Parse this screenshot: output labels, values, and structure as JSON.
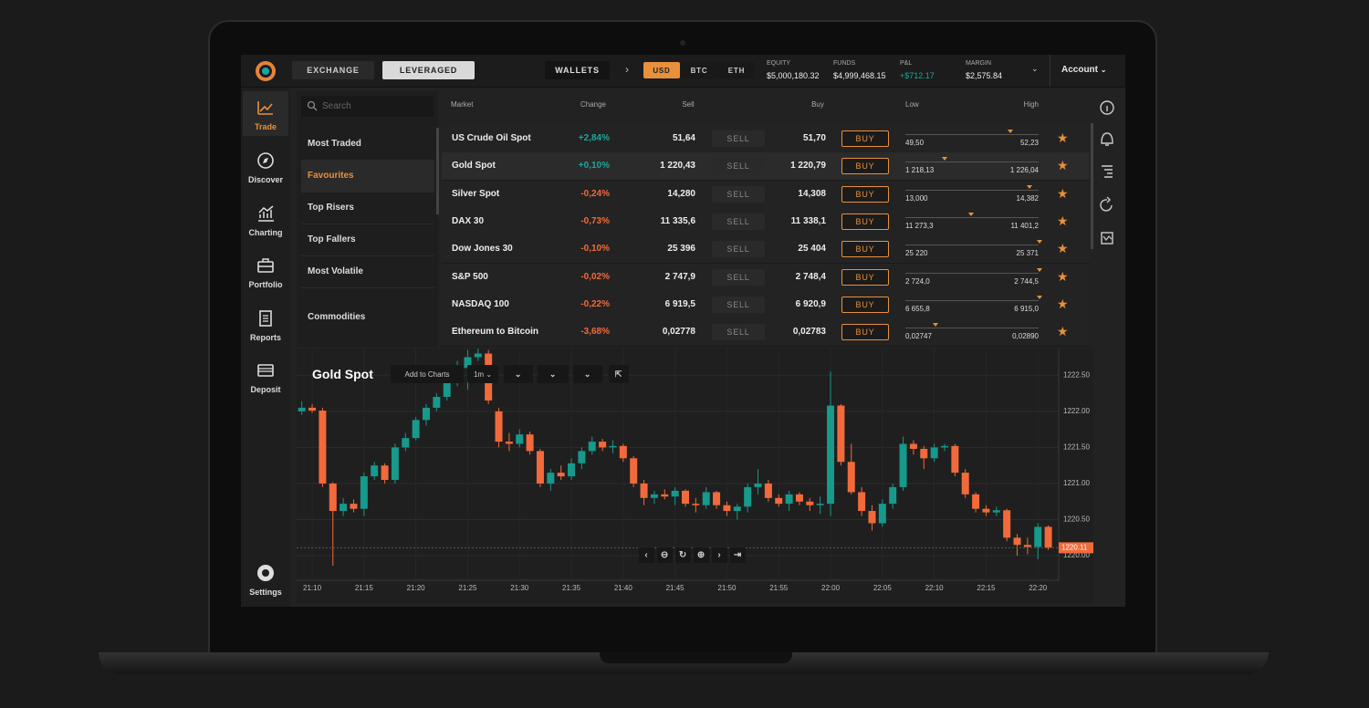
{
  "top_bar": {
    "tabs": [
      "EXCHANGE",
      "LEVERAGED"
    ],
    "wallets": "WALLETS",
    "currencies": [
      "USD",
      "BTC",
      "ETH"
    ],
    "stats": [
      {
        "label": "EQUITY",
        "value": "$5,000,180.32"
      },
      {
        "label": "FUNDS",
        "value": "$4,999,468.15"
      },
      {
        "label": "P&L",
        "value": "+$712.17"
      },
      {
        "label": "MARGIN",
        "value": "$2,575.84"
      }
    ],
    "account": "Account"
  },
  "sidebar": {
    "items": [
      "Trade",
      "Discover",
      "Charting",
      "Portfolio",
      "Reports",
      "Deposit"
    ],
    "settings": "Settings"
  },
  "categories": {
    "search_placeholder": "Search",
    "items": [
      "Most Traded",
      "Favourites",
      "Top Risers",
      "Top Fallers",
      "Most Volatile",
      "Commodities"
    ]
  },
  "market_table": {
    "columns": [
      "Market",
      "Change",
      "Sell",
      "Buy",
      "Low",
      "High"
    ],
    "sell_button": "SELL",
    "buy_button": "BUY",
    "rows": [
      [
        "US Crude Oil Spot",
        "+2,84%",
        "51,64",
        "51,70",
        "49,50",
        "52,23"
      ],
      [
        "Gold Spot",
        "+0,10%",
        "1 220,43",
        "1 220,79",
        "1 218,13",
        "1 226,04"
      ],
      [
        "Silver Spot",
        "-0,24%",
        "14,280",
        "14,308",
        "13,000",
        "14,382"
      ],
      [
        "DAX 30",
        "-0,73%",
        "11 335,6",
        "11 338,1",
        "11 273,3",
        "11 401,2"
      ],
      [
        "Dow Jones 30",
        "-0,10%",
        "25 396",
        "25 404",
        "25 220",
        "25 371"
      ],
      [
        "S&P 500",
        "-0,02%",
        "2 747,9",
        "2 748,4",
        "2 724,0",
        "2 744,5"
      ],
      [
        "NASDAQ 100",
        "-0,22%",
        "6 919,5",
        "6 920,9",
        "6 655,8",
        "6 915,0"
      ],
      [
        "Ethereum to Bitcoin",
        "-3,68%",
        "0,02778",
        "0,02783",
        "0,02747",
        "0,02890"
      ]
    ]
  },
  "chart_toolbar": {
    "add_to_charts": "Add to Charts",
    "interval": "1m"
  },
  "chart_data": {
    "type": "candlestick",
    "title": "Gold Spot",
    "categories": [
      null,
      "21:10",
      null,
      null,
      null,
      null,
      "21:15",
      null,
      null,
      null,
      null,
      "21:20",
      null,
      null,
      null,
      null,
      "21:25",
      null,
      null,
      null,
      null,
      "21:30",
      null,
      null,
      null,
      null,
      "21:35",
      null,
      null,
      null,
      null,
      "21:40",
      null,
      null,
      null,
      null,
      "21:45",
      null,
      null,
      null,
      null,
      "21:50",
      null,
      null,
      null,
      null,
      "21:55",
      null,
      null,
      null,
      null,
      "22:00",
      null,
      null,
      null,
      null,
      "22:05",
      null,
      null,
      null,
      null,
      "22:10",
      null,
      null,
      null,
      null,
      "22:15",
      null,
      null,
      null,
      null,
      "22:20",
      null
    ],
    "open": [
      1222.0,
      1222.05,
      1222.01,
      1221.0,
      1220.62,
      1220.72,
      1220.65,
      1221.1,
      1221.25,
      1221.05,
      1221.5,
      1221.63,
      1221.88,
      1222.05,
      1222.2,
      1222.4,
      1222.6,
      1222.75,
      1222.8,
      1222.0,
      1221.58,
      1221.55,
      1221.68,
      1221.45,
      1221.0,
      1221.15,
      1221.1,
      1221.28,
      1221.45,
      1221.58,
      1221.5,
      1221.52,
      1221.35,
      1221.0,
      1220.8,
      1220.85,
      1220.82,
      1220.9,
      1220.72,
      1220.7,
      1220.88,
      1220.7,
      1220.62,
      1220.68,
      1220.95,
      1221.0,
      1220.8,
      1220.72,
      1220.85,
      1220.75,
      1220.7,
      1220.72,
      1222.08,
      1221.3,
      1220.88,
      1220.62,
      1220.45,
      1220.72,
      1220.95,
      1221.55,
      1221.48,
      1221.35,
      1221.5,
      1221.52,
      1221.15,
      1220.85,
      1220.65,
      1220.6,
      1220.63,
      1220.25,
      1220.15,
      1220.12,
      1220.4
    ],
    "high": [
      1222.14,
      1222.1,
      1222.05,
      1221.02,
      1220.8,
      1220.78,
      1221.15,
      1221.3,
      1221.28,
      1221.55,
      1221.7,
      1221.92,
      1222.1,
      1222.25,
      1222.45,
      1222.7,
      1222.85,
      1222.95,
      1222.85,
      1222.05,
      1221.7,
      1221.75,
      1221.72,
      1221.48,
      1221.2,
      1221.25,
      1221.35,
      1221.5,
      1221.65,
      1221.62,
      1221.6,
      1221.55,
      1221.38,
      1221.05,
      1220.9,
      1220.92,
      1220.95,
      1220.92,
      1220.8,
      1220.95,
      1220.9,
      1220.75,
      1220.72,
      1221.0,
      1221.2,
      1221.05,
      1220.85,
      1220.9,
      1220.88,
      1220.8,
      1220.82,
      1222.55,
      1222.1,
      1221.55,
      1220.95,
      1220.7,
      1220.78,
      1221.0,
      1221.65,
      1221.6,
      1221.52,
      1221.55,
      1221.55,
      1221.55,
      1221.2,
      1220.88,
      1220.7,
      1220.68,
      1220.65,
      1220.3,
      1220.25,
      1220.45,
      1220.42
    ],
    "low": [
      1221.95,
      1221.98,
      1220.95,
      1219.86,
      1220.55,
      1220.6,
      1220.55,
      1221.05,
      1221.0,
      1221.0,
      1221.45,
      1221.6,
      1221.8,
      1222.0,
      1222.15,
      1222.35,
      1222.3,
      1222.7,
      1222.1,
      1221.5,
      1221.45,
      1221.5,
      1221.4,
      1220.95,
      1220.9,
      1221.05,
      1221.05,
      1221.2,
      1221.4,
      1221.45,
      1221.42,
      1221.3,
      1220.95,
      1220.7,
      1220.72,
      1220.78,
      1220.7,
      1220.68,
      1220.6,
      1220.65,
      1220.65,
      1220.55,
      1220.5,
      1220.6,
      1220.85,
      1220.75,
      1220.68,
      1220.62,
      1220.7,
      1220.62,
      1220.58,
      1220.55,
      1221.25,
      1220.85,
      1220.55,
      1220.35,
      1220.4,
      1220.65,
      1220.9,
      1221.4,
      1221.2,
      1221.3,
      1221.45,
      1221.1,
      1220.8,
      1220.6,
      1220.55,
      1220.55,
      1220.2,
      1220.0,
      1220.02,
      1219.95,
      1220.08
    ],
    "close": [
      1222.05,
      1222.01,
      1221.0,
      1220.62,
      1220.72,
      1220.65,
      1221.1,
      1221.25,
      1221.05,
      1221.5,
      1221.63,
      1221.88,
      1222.05,
      1222.2,
      1222.4,
      1222.6,
      1222.75,
      1222.8,
      1222.15,
      1221.58,
      1221.55,
      1221.68,
      1221.45,
      1221.0,
      1221.15,
      1221.1,
      1221.28,
      1221.45,
      1221.58,
      1221.5,
      1221.52,
      1221.35,
      1221.0,
      1220.8,
      1220.85,
      1220.82,
      1220.9,
      1220.72,
      1220.7,
      1220.88,
      1220.7,
      1220.62,
      1220.68,
      1220.95,
      1221.0,
      1220.8,
      1220.72,
      1220.85,
      1220.75,
      1220.7,
      1220.72,
      1222.08,
      1221.3,
      1220.88,
      1220.62,
      1220.45,
      1220.72,
      1220.95,
      1221.55,
      1221.48,
      1221.35,
      1221.5,
      1221.52,
      1221.15,
      1220.85,
      1220.65,
      1220.6,
      1220.63,
      1220.25,
      1220.15,
      1220.12,
      1220.4,
      1220.11
    ],
    "up_color": "#17998b",
    "down_color": "#f26a3b",
    "ylim": [
      1219.66,
      1222.87
    ],
    "yticks": [
      {
        "value": 1220,
        "label": "1220.00"
      },
      {
        "value": 1220.5,
        "label": "1220.50"
      },
      {
        "value": 1221,
        "label": "1221.00"
      },
      {
        "value": 1221.5,
        "label": "1221.50"
      },
      {
        "value": 1222,
        "label": "1222.00"
      },
      {
        "value": 1222.5,
        "label": "1222.50"
      }
    ],
    "last_price": 1220.11,
    "grid": true
  }
}
